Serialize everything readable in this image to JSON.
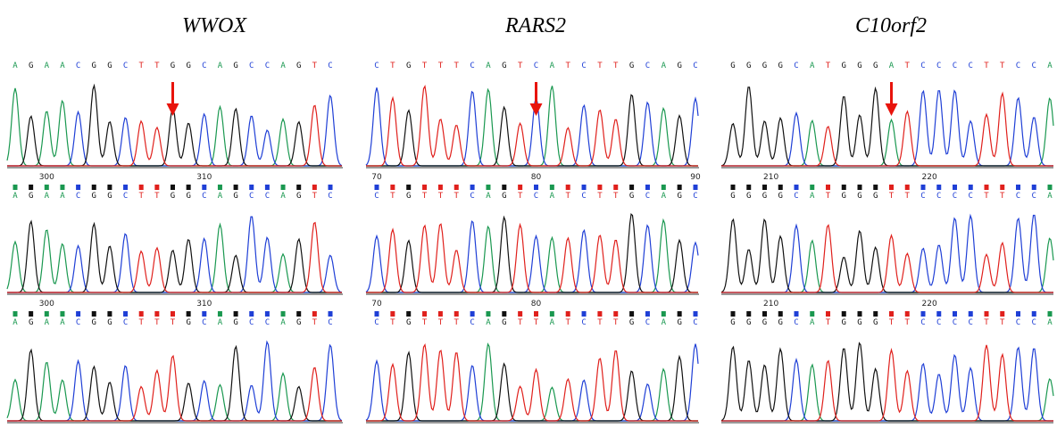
{
  "panels": [
    {
      "title": "WWOX",
      "rows": [
        {
          "bases": [
            "A",
            "G",
            "A",
            "A",
            "C",
            "G",
            "G",
            "C",
            "T",
            "T",
            "G",
            "G",
            "C",
            "A",
            "G",
            "C",
            "C",
            "A",
            "G",
            "T",
            "C"
          ]
        },
        {
          "ruler": [
            300,
            310
          ],
          "bases": [
            "A",
            "G",
            "A",
            "A",
            "C",
            "G",
            "G",
            "C",
            "T",
            "T",
            "G",
            "G",
            "C",
            "A",
            "G",
            "C",
            "C",
            "A",
            "G",
            "T",
            "C"
          ]
        },
        {
          "ruler": [
            300,
            310
          ],
          "bases": [
            "A",
            "G",
            "A",
            "A",
            "C",
            "G",
            "G",
            "C",
            "T",
            "T",
            "T",
            "G",
            "C",
            "A",
            "G",
            "C",
            "C",
            "A",
            "G",
            "T",
            "C"
          ]
        }
      ]
    },
    {
      "title": "RARS2",
      "rows": [
        {
          "bases": [
            "C",
            "T",
            "G",
            "T",
            "T",
            "T",
            "C",
            "A",
            "G",
            "T",
            "C",
            "A",
            "T",
            "C",
            "T",
            "T",
            "G",
            "C",
            "A",
            "G",
            "C"
          ]
        },
        {
          "ruler": [
            70,
            80,
            90
          ],
          "bases": [
            "C",
            "T",
            "G",
            "T",
            "T",
            "T",
            "C",
            "A",
            "G",
            "T",
            "C",
            "A",
            "T",
            "C",
            "T",
            "T",
            "G",
            "C",
            "A",
            "G",
            "C"
          ]
        },
        {
          "ruler": [
            70,
            80
          ],
          "bases": [
            "C",
            "T",
            "G",
            "T",
            "T",
            "T",
            "C",
            "A",
            "G",
            "T",
            "T",
            "A",
            "T",
            "C",
            "T",
            "T",
            "G",
            "C",
            "A",
            "G",
            "C"
          ]
        }
      ]
    },
    {
      "title": "C10orf2",
      "rows": [
        {
          "bases": [
            "G",
            "G",
            "G",
            "G",
            "C",
            "A",
            "T",
            "G",
            "G",
            "G",
            "A",
            "T",
            "C",
            "C",
            "C",
            "C",
            "T",
            "T",
            "C",
            "C",
            "A"
          ]
        },
        {
          "ruler": [
            210,
            220
          ],
          "bases": [
            "G",
            "G",
            "G",
            "G",
            "C",
            "A",
            "T",
            "G",
            "G",
            "G",
            "T",
            "T",
            "C",
            "C",
            "C",
            "C",
            "T",
            "T",
            "C",
            "C",
            "A"
          ]
        },
        {
          "ruler": [
            210,
            220
          ],
          "bases": [
            "G",
            "G",
            "G",
            "G",
            "C",
            "A",
            "T",
            "G",
            "G",
            "G",
            "T",
            "T",
            "C",
            "C",
            "C",
            "C",
            "T",
            "T",
            "C",
            "C",
            "A"
          ]
        }
      ]
    }
  ]
}
